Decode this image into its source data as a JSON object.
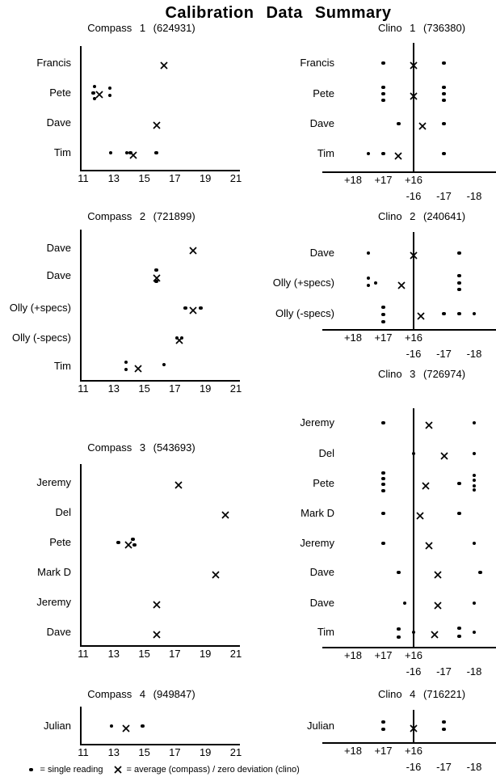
{
  "title": "Calibration Data Summary",
  "legend": {
    "dot_label": "= single reading",
    "cross_label": "= average (compass) / zero deviation (clino)"
  },
  "chart_data": [
    {
      "type": "scatter",
      "instrument": "compass",
      "title": "Compass 1 (624931)",
      "x_ticks": [
        "11",
        "13",
        "15",
        "17",
        "19",
        "21"
      ],
      "x_range": [
        11,
        21
      ],
      "note": "dots/cross = [reading_degrees, y_offset_px]; cross = average",
      "rows": [
        {
          "label": "Francis",
          "dots": [],
          "cross": [
            16.3,
            0
          ]
        },
        {
          "label": "Pete",
          "dots": [
            [
              11.75,
              -8
            ],
            [
              11.65,
              0
            ],
            [
              11.75,
              7
            ],
            [
              12.75,
              -6
            ],
            [
              12.75,
              3
            ]
          ],
          "cross": [
            12.05,
            -1
          ]
        },
        {
          "label": "Dave",
          "dots": [],
          "cross": [
            15.8,
            0
          ]
        },
        {
          "label": "Tim",
          "dots": [
            [
              12.8,
              0
            ],
            [
              13.85,
              0
            ],
            [
              14.1,
              0
            ],
            [
              15.8,
              0
            ]
          ],
          "cross": [
            14.3,
            0
          ]
        }
      ]
    },
    {
      "type": "scatter",
      "instrument": "clino",
      "title": "Clino 1 (736380)",
      "x_ticks_top_row": [
        "+18",
        "+17",
        "+16"
      ],
      "x_ticks_bottom_row": [
        "-16",
        "-17",
        "-18"
      ],
      "note": "folded axis: +18..+16 then -16..-18; centre line = zero deviation (value 16 plots on the line); cross = zero deviation",
      "rows": [
        {
          "label": "Francis",
          "dots": [
            [
              17.0,
              0
            ],
            [
              -17.0,
              0
            ]
          ],
          "cross": [
            16,
            0
          ]
        },
        {
          "label": "Pete",
          "dots": [
            [
              17.0,
              -8
            ],
            [
              17.0,
              0
            ],
            [
              17.0,
              8
            ],
            [
              -17.0,
              -8
            ],
            [
              -17.0,
              0
            ],
            [
              -17.0,
              8
            ]
          ],
          "cross": [
            16,
            0
          ]
        },
        {
          "label": "Dave",
          "dots": [
            [
              16.5,
              0
            ],
            [
              -17.0,
              0
            ]
          ],
          "cross": [
            -16.3,
            0
          ]
        },
        {
          "label": "Tim",
          "dots": [
            [
              17.5,
              0
            ],
            [
              17.0,
              0
            ],
            [
              -17.0,
              0
            ]
          ],
          "cross": [
            16.5,
            0
          ]
        }
      ]
    },
    {
      "type": "scatter",
      "instrument": "compass",
      "title": "Compass 2 (721899)",
      "x_ticks": [
        "11",
        "13",
        "15",
        "17",
        "19",
        "21"
      ],
      "x_range": [
        11,
        21
      ],
      "rows": [
        {
          "label": "Dave",
          "dots": [],
          "cross": [
            18.2,
            0
          ]
        },
        {
          "label": "Dave",
          "dots": [
            [
              15.8,
              -7
            ],
            [
              15.8,
              7
            ]
          ],
          "cross": [
            15.8,
            0
          ]
        },
        {
          "label": "Olly (+specs)",
          "dots": [
            [
              17.7,
              0
            ],
            [
              18.7,
              0
            ]
          ],
          "cross": [
            18.2,
            0
          ]
        },
        {
          "label": "Olly (-specs)",
          "dots": [
            [
              17.15,
              0
            ],
            [
              17.45,
              0
            ]
          ],
          "cross": [
            17.3,
            0
          ]
        },
        {
          "label": "Tim",
          "dots": [
            [
              13.8,
              -5
            ],
            [
              13.8,
              4
            ],
            [
              16.3,
              -2
            ]
          ],
          "cross": [
            14.6,
            0
          ]
        }
      ]
    },
    {
      "type": "scatter",
      "instrument": "clino",
      "title": "Clino 2 (240641)",
      "x_ticks_top_row": [
        "+18",
        "+17",
        "+16"
      ],
      "x_ticks_bottom_row": [
        "-16",
        "-17",
        "-18"
      ],
      "rows": [
        {
          "label": "Dave",
          "dots": [
            [
              17.5,
              0
            ],
            [
              -17.5,
              0
            ]
          ],
          "cross": [
            16,
            0
          ]
        },
        {
          "label": "Olly (+specs)",
          "dots": [
            [
              17.5,
              -6
            ],
            [
              17.5,
              3
            ],
            [
              17.25,
              0
            ],
            [
              -17.5,
              -9
            ],
            [
              -17.5,
              0
            ],
            [
              -17.5,
              8
            ]
          ],
          "cross": [
            16.4,
            0
          ]
        },
        {
          "label": "Olly (-specs)",
          "dots": [
            [
              17.0,
              -8
            ],
            [
              17.0,
              1
            ],
            [
              17.0,
              10
            ],
            [
              -17.0,
              0
            ],
            [
              -17.5,
              0
            ],
            [
              -18.0,
              0
            ]
          ],
          "cross": [
            -16.25,
            0
          ]
        }
      ]
    },
    {
      "type": "scatter",
      "instrument": "compass",
      "title": "Compass 3 (543693)",
      "x_ticks": [
        "11",
        "13",
        "15",
        "17",
        "19",
        "21"
      ],
      "x_range": [
        11,
        21
      ],
      "rows": [
        {
          "label": "Jeremy",
          "dots": [],
          "cross": [
            17.25,
            0
          ]
        },
        {
          "label": "Del",
          "dots": [],
          "cross": [
            20.3,
            0
          ]
        },
        {
          "label": "Pete",
          "dots": [
            [
              13.3,
              0
            ],
            [
              14.25,
              -4
            ],
            [
              14.35,
              3
            ]
          ],
          "cross": [
            13.95,
            0
          ]
        },
        {
          "label": "Mark D",
          "dots": [],
          "cross": [
            19.7,
            0
          ]
        },
        {
          "label": "Jeremy",
          "dots": [],
          "cross": [
            15.8,
            0
          ]
        },
        {
          "label": "Dave",
          "dots": [],
          "cross": [
            15.8,
            0
          ]
        }
      ]
    },
    {
      "type": "scatter",
      "instrument": "clino",
      "title": "Clino 3 (726974)",
      "x_ticks_top_row": [
        "+18",
        "+17",
        "+16"
      ],
      "x_ticks_bottom_row": [
        "-16",
        "-17",
        "-18"
      ],
      "rows": [
        {
          "label": "Jeremy",
          "dots": [
            [
              17.0,
              0
            ],
            [
              -18.0,
              0
            ]
          ],
          "cross": [
            -16.5,
            0
          ]
        },
        {
          "label": "Del",
          "dots": [
            [
              16,
              0
            ],
            [
              -18.0,
              0
            ]
          ],
          "cross": [
            -17.0,
            0
          ]
        },
        {
          "label": "Pete",
          "dots": [
            [
              17.0,
              -13
            ],
            [
              17.0,
              -6
            ],
            [
              17.0,
              1
            ],
            [
              17.0,
              9
            ],
            [
              -17.5,
              0
            ],
            [
              -18.0,
              -10
            ],
            [
              -18.0,
              -4
            ],
            [
              -18.0,
              3
            ],
            [
              -18.0,
              8
            ]
          ],
          "cross": [
            -16.4,
            0
          ]
        },
        {
          "label": "Mark D",
          "dots": [
            [
              17.0,
              0
            ],
            [
              -17.5,
              0
            ]
          ],
          "cross": [
            -16.2,
            0
          ]
        },
        {
          "label": "Jeremy",
          "dots": [
            [
              17.0,
              0
            ],
            [
              -18.0,
              0
            ]
          ],
          "cross": [
            -16.5,
            0
          ]
        },
        {
          "label": "Dave",
          "dots": [
            [
              16.5,
              0
            ],
            [
              -18.2,
              0
            ]
          ],
          "cross": [
            -16.8,
            0
          ]
        },
        {
          "label": "Dave",
          "dots": [
            [
              16.3,
              0
            ],
            [
              -18.0,
              0
            ]
          ],
          "cross": [
            -16.8,
            0
          ]
        },
        {
          "label": "Tim",
          "dots": [
            [
              16.5,
              -4
            ],
            [
              16.5,
              6
            ],
            [
              16,
              0
            ],
            [
              -17.5,
              -5
            ],
            [
              -17.5,
              5
            ],
            [
              -18.0,
              0
            ]
          ],
          "cross": [
            -16.7,
            0
          ]
        }
      ]
    },
    {
      "type": "scatter",
      "instrument": "compass",
      "title": "Compass 4 (949847)",
      "x_ticks": [
        "11",
        "13",
        "15",
        "17",
        "19",
        "21"
      ],
      "x_range": [
        11,
        21
      ],
      "rows": [
        {
          "label": "Julian",
          "dots": [
            [
              12.85,
              0
            ],
            [
              14.9,
              0
            ]
          ],
          "cross": [
            13.8,
            0
          ]
        }
      ]
    },
    {
      "type": "scatter",
      "instrument": "clino",
      "title": "Clino 4 (716221)",
      "x_ticks_top_row": [
        "+18",
        "+17",
        "+16"
      ],
      "x_ticks_bottom_row": [
        "-16",
        "-17",
        "-18"
      ],
      "rows": [
        {
          "label": "Julian",
          "dots": [
            [
              17.0,
              -5
            ],
            [
              17.0,
              4
            ],
            [
              -17.0,
              -5
            ],
            [
              -17.0,
              4
            ]
          ],
          "cross": [
            16,
            0
          ]
        }
      ]
    }
  ]
}
